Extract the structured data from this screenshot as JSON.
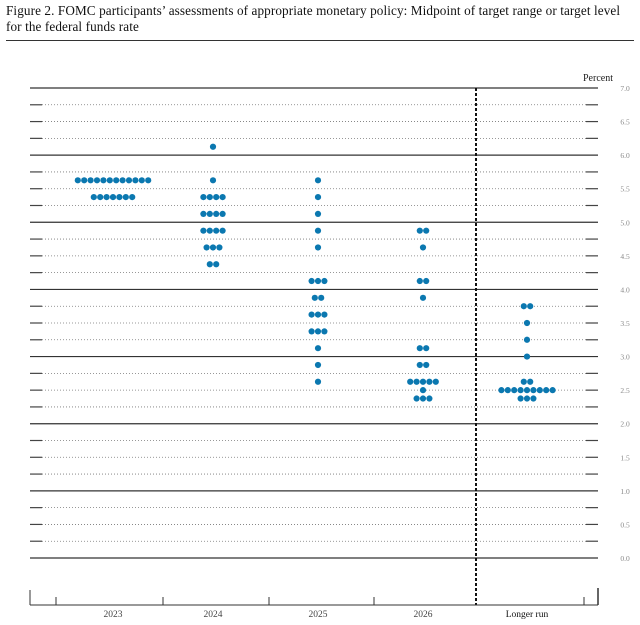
{
  "chart_data": {
    "type": "scatter",
    "title": "Figure 2.  FOMC participants’ assessments of appropriate monetary policy:  Midpoint of target range or target level for the federal funds rate",
    "ylabel": "Percent",
    "ylim": [
      0,
      7
    ],
    "y_ticks": [
      "0.0",
      "0.5",
      "1.0",
      "1.5",
      "2.0",
      "2.5",
      "3.0",
      "3.5",
      "4.0",
      "4.5",
      "5.0",
      "5.5",
      "6.0",
      "6.5",
      "7.0"
    ],
    "grid": "dotted every 0.25, solid at integers",
    "categories": [
      "2023",
      "2024",
      "2025",
      "2026",
      "Longer run"
    ],
    "dot_color": "#0b78b0",
    "dots": [
      {
        "category": "2023",
        "levels": [
          {
            "value": 5.625,
            "count": 12
          },
          {
            "value": 5.375,
            "count": 7
          }
        ]
      },
      {
        "category": "2024",
        "levels": [
          {
            "value": 6.125,
            "count": 1
          },
          {
            "value": 5.625,
            "count": 1
          },
          {
            "value": 5.375,
            "count": 4
          },
          {
            "value": 5.125,
            "count": 4
          },
          {
            "value": 4.875,
            "count": 4
          },
          {
            "value": 4.625,
            "count": 3
          },
          {
            "value": 4.375,
            "count": 2
          }
        ]
      },
      {
        "category": "2025",
        "levels": [
          {
            "value": 5.625,
            "count": 1
          },
          {
            "value": 5.375,
            "count": 1
          },
          {
            "value": 5.125,
            "count": 1
          },
          {
            "value": 4.875,
            "count": 1
          },
          {
            "value": 4.625,
            "count": 1
          },
          {
            "value": 4.125,
            "count": 3
          },
          {
            "value": 3.875,
            "count": 2
          },
          {
            "value": 3.625,
            "count": 3
          },
          {
            "value": 3.375,
            "count": 3
          },
          {
            "value": 3.125,
            "count": 1
          },
          {
            "value": 2.875,
            "count": 1
          },
          {
            "value": 2.625,
            "count": 1
          }
        ]
      },
      {
        "category": "2026",
        "levels": [
          {
            "value": 4.875,
            "count": 2
          },
          {
            "value": 4.625,
            "count": 1
          },
          {
            "value": 4.125,
            "count": 2
          },
          {
            "value": 3.875,
            "count": 1
          },
          {
            "value": 3.125,
            "count": 2
          },
          {
            "value": 2.875,
            "count": 2
          },
          {
            "value": 2.625,
            "count": 5
          },
          {
            "value": 2.5,
            "count": 1
          },
          {
            "value": 2.375,
            "count": 3
          }
        ]
      },
      {
        "category": "Longer run",
        "levels": [
          {
            "value": 3.75,
            "count": 2
          },
          {
            "value": 3.5,
            "count": 1
          },
          {
            "value": 3.25,
            "count": 1
          },
          {
            "value": 3.0,
            "count": 1
          },
          {
            "value": 2.625,
            "count": 2
          },
          {
            "value": 2.5,
            "count": 9
          },
          {
            "value": 2.375,
            "count": 3
          }
        ]
      }
    ]
  }
}
